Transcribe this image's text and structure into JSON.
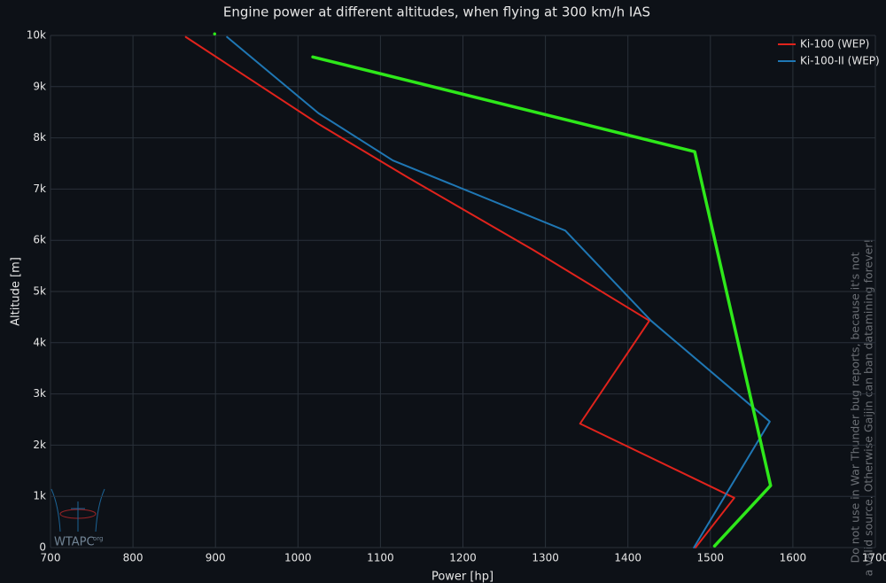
{
  "chart_data": {
    "type": "line",
    "title": "Engine power at different altitudes, when flying at 300 km/h IAS",
    "x_label": "Power [hp]",
    "y_label": "Altitude [m]",
    "xlim": [
      700,
      1700
    ],
    "xticks": [
      700,
      800,
      900,
      1000,
      1100,
      1200,
      1300,
      1400,
      1500,
      1600,
      1700
    ],
    "ylim": [
      0,
      10000
    ],
    "yticks": [
      0,
      {
        "value": 1000,
        "label": "1k"
      },
      {
        "value": 2000,
        "label": "2k"
      },
      {
        "value": 3000,
        "label": "3k"
      },
      {
        "value": 4000,
        "label": "4k"
      },
      {
        "value": 5000,
        "label": "5k"
      },
      {
        "value": 6000,
        "label": "6k"
      },
      {
        "value": 7000,
        "label": "7k"
      },
      {
        "value": 8000,
        "label": "8k"
      },
      {
        "value": 9000,
        "label": "9k"
      },
      {
        "value": 10000,
        "label": "10k"
      }
    ],
    "grid": true,
    "legend": "upper right",
    "series": [
      {
        "name": "Ki-100 (WEP)",
        "color": "#e0231c",
        "width": 2,
        "x": [
          864,
          1025,
          1133,
          1285,
          1426,
          1342,
          1529,
          1482
        ],
        "values": [
          9970,
          8270,
          7230,
          5813,
          4430,
          2420,
          970,
          0
        ]
      },
      {
        "name": "Ki-100-II (WEP)",
        "color": "#1f77b4",
        "width": 2,
        "x": [
          914,
          1025,
          1115,
          1324,
          1428,
          1572,
          1480
        ],
        "values": [
          9970,
          8480,
          7560,
          6190,
          4430,
          2460,
          0
        ]
      },
      {
        "color": "#2ee81a",
        "width": 3.5,
        "x": [
          899,
          null,
          1018,
          1481,
          1573,
          1505
        ],
        "values": [
          10030,
          null,
          9580,
          7730,
          1210,
          30
        ]
      }
    ],
    "notes": [
      "Do not use in War Thunder bug reports, because it's not",
      "a valid source. Otherwise Gaijin can ban datamining forever!"
    ],
    "logo": {
      "text": "WTAPC",
      "suffix": "org"
    }
  }
}
